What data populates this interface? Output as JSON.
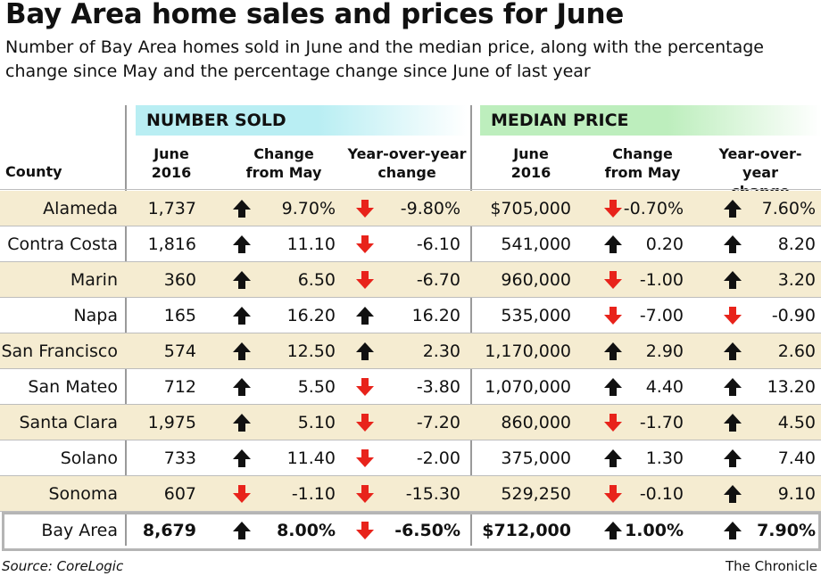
{
  "title": "Bay Area home sales and prices for June",
  "subtitle": "Number of Bay Area homes sold in June and the median price, along with the percentage change since May and the percentage change since June of last year",
  "groups": {
    "sold": "NUMBER SOLD",
    "price": "MEDIAN PRICE"
  },
  "headers": {
    "county": "County",
    "sold_june": [
      "June",
      "2016"
    ],
    "sold_change": [
      "Change",
      "from May"
    ],
    "sold_yoy": [
      "Year-over-year",
      "change"
    ],
    "price_june": [
      "June",
      "2016"
    ],
    "price_change": [
      "Change",
      "from May"
    ],
    "price_yoy": [
      "Year-over-year",
      "change"
    ]
  },
  "colors": {
    "up": "#111111",
    "down": "#e8231b",
    "row_shade": "#f5ecd1",
    "sold_header": "#b9eef3",
    "price_header": "#bdeebd"
  },
  "chart_data": {
    "type": "table",
    "title": "Bay Area home sales and prices for June",
    "columns": [
      "County",
      "June 2016",
      "Change from May",
      "Year-over-year change",
      "June 2016",
      "Change from May",
      "Year-over-year change"
    ],
    "rows": [
      {
        "county": "Alameda",
        "sold": "1,737",
        "sold_change": "9.70%",
        "sold_change_dir": "up",
        "sold_yoy": "-9.80%",
        "sold_yoy_dir": "down",
        "price": "$705,000",
        "price_change": "-0.70%",
        "price_change_dir": "down",
        "price_yoy": "7.60%",
        "price_yoy_dir": "up"
      },
      {
        "county": "Contra Costa",
        "sold": "1,816",
        "sold_change": "11.10",
        "sold_change_dir": "up",
        "sold_yoy": "-6.10",
        "sold_yoy_dir": "down",
        "price": "541,000",
        "price_change": "0.20",
        "price_change_dir": "up",
        "price_yoy": "8.20",
        "price_yoy_dir": "up"
      },
      {
        "county": "Marin",
        "sold": "360",
        "sold_change": "6.50",
        "sold_change_dir": "up",
        "sold_yoy": "-6.70",
        "sold_yoy_dir": "down",
        "price": "960,000",
        "price_change": "-1.00",
        "price_change_dir": "down",
        "price_yoy": "3.20",
        "price_yoy_dir": "up"
      },
      {
        "county": "Napa",
        "sold": "165",
        "sold_change": "16.20",
        "sold_change_dir": "up",
        "sold_yoy": "16.20",
        "sold_yoy_dir": "up",
        "price": "535,000",
        "price_change": "-7.00",
        "price_change_dir": "down",
        "price_yoy": "-0.90",
        "price_yoy_dir": "down"
      },
      {
        "county": "San Francisco",
        "sold": "574",
        "sold_change": "12.50",
        "sold_change_dir": "up",
        "sold_yoy": "2.30",
        "sold_yoy_dir": "up",
        "price": "1,170,000",
        "price_change": "2.90",
        "price_change_dir": "up",
        "price_yoy": "2.60",
        "price_yoy_dir": "up"
      },
      {
        "county": "San Mateo",
        "sold": "712",
        "sold_change": "5.50",
        "sold_change_dir": "up",
        "sold_yoy": "-3.80",
        "sold_yoy_dir": "down",
        "price": "1,070,000",
        "price_change": "4.40",
        "price_change_dir": "up",
        "price_yoy": "13.20",
        "price_yoy_dir": "up"
      },
      {
        "county": "Santa Clara",
        "sold": "1,975",
        "sold_change": "5.10",
        "sold_change_dir": "up",
        "sold_yoy": "-7.20",
        "sold_yoy_dir": "down",
        "price": "860,000",
        "price_change": "-1.70",
        "price_change_dir": "down",
        "price_yoy": "4.50",
        "price_yoy_dir": "up"
      },
      {
        "county": "Solano",
        "sold": "733",
        "sold_change": "11.40",
        "sold_change_dir": "up",
        "sold_yoy": "-2.00",
        "sold_yoy_dir": "down",
        "price": "375,000",
        "price_change": "1.30",
        "price_change_dir": "up",
        "price_yoy": "7.40",
        "price_yoy_dir": "up"
      },
      {
        "county": "Sonoma",
        "sold": "607",
        "sold_change": "-1.10",
        "sold_change_dir": "down",
        "sold_yoy": "-15.30",
        "sold_yoy_dir": "down",
        "price": "529,250",
        "price_change": "-0.10",
        "price_change_dir": "down",
        "price_yoy": "9.10",
        "price_yoy_dir": "up"
      }
    ],
    "total": {
      "county": "Bay Area",
      "sold": "8,679",
      "sold_change": "8.00%",
      "sold_change_dir": "up",
      "sold_yoy": "-6.50%",
      "sold_yoy_dir": "down",
      "price": "$712,000",
      "price_change": "1.00%",
      "price_change_dir": "up",
      "price_yoy": "7.90%",
      "price_yoy_dir": "up"
    }
  },
  "footer": {
    "source": "Source: CoreLogic",
    "credit": "The Chronicle"
  }
}
